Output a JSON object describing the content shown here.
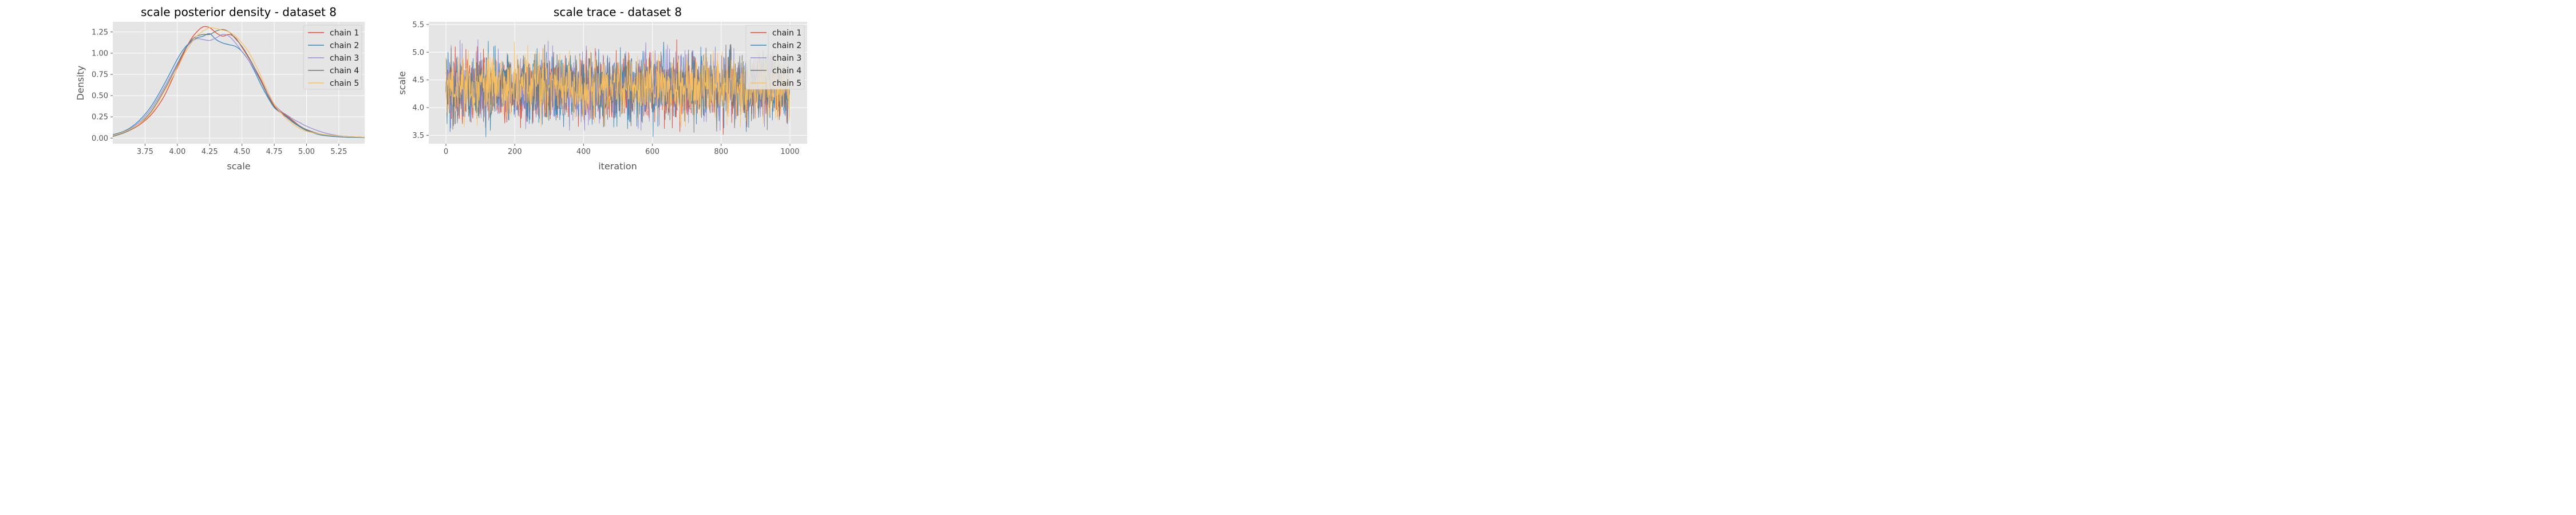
{
  "chart_data": [
    {
      "type": "line",
      "title": "scale posterior density - dataset 8",
      "xlabel": "scale",
      "ylabel": "Density",
      "xlim": [
        3.5,
        5.45
      ],
      "ylim": [
        -0.065,
        1.37
      ],
      "xticks": [
        "3.75",
        "4.00",
        "4.25",
        "4.50",
        "4.75",
        "5.00",
        "5.25"
      ],
      "yticks": [
        "0.00",
        "0.25",
        "0.50",
        "0.75",
        "1.00",
        "1.25"
      ],
      "grid": true,
      "legend_position": "top-right",
      "series": [
        {
          "name": "chain 1",
          "color": "#E24A33",
          "x": [
            3.5,
            3.6,
            3.7,
            3.8,
            3.9,
            4.0,
            4.05,
            4.1,
            4.15,
            4.2,
            4.25,
            4.3,
            4.35,
            4.4,
            4.45,
            4.5,
            4.55,
            4.6,
            4.65,
            4.7,
            4.75,
            4.8,
            4.85,
            4.9,
            4.95,
            5.0,
            5.1,
            5.2,
            5.3,
            5.45
          ],
          "y": [
            0.02,
            0.07,
            0.15,
            0.28,
            0.5,
            0.83,
            1.0,
            1.15,
            1.25,
            1.31,
            1.3,
            1.24,
            1.2,
            1.22,
            1.18,
            1.07,
            0.95,
            0.82,
            0.68,
            0.52,
            0.38,
            0.31,
            0.26,
            0.2,
            0.14,
            0.1,
            0.05,
            0.03,
            0.02,
            0.01
          ]
        },
        {
          "name": "chain 2",
          "color": "#348ABD",
          "x": [
            3.5,
            3.6,
            3.7,
            3.8,
            3.9,
            4.0,
            4.05,
            4.1,
            4.15,
            4.2,
            4.25,
            4.3,
            4.35,
            4.4,
            4.45,
            4.5,
            4.55,
            4.6,
            4.65,
            4.7,
            4.75,
            4.8,
            4.85,
            4.9,
            4.95,
            5.0,
            5.1,
            5.2,
            5.3,
            5.45
          ],
          "y": [
            0.04,
            0.09,
            0.2,
            0.38,
            0.64,
            0.93,
            1.05,
            1.13,
            1.18,
            1.2,
            1.23,
            1.16,
            1.12,
            1.1,
            1.08,
            1.02,
            0.92,
            0.78,
            0.62,
            0.48,
            0.36,
            0.3,
            0.24,
            0.18,
            0.13,
            0.09,
            0.04,
            0.02,
            0.01,
            0.005
          ]
        },
        {
          "name": "chain 3",
          "color": "#988ED5",
          "x": [
            3.5,
            3.6,
            3.7,
            3.8,
            3.9,
            4.0,
            4.05,
            4.1,
            4.15,
            4.2,
            4.25,
            4.3,
            4.35,
            4.4,
            4.45,
            4.5,
            4.55,
            4.6,
            4.65,
            4.7,
            4.75,
            4.8,
            4.85,
            4.9,
            4.95,
            5.0,
            5.1,
            5.2,
            5.3,
            5.45
          ],
          "y": [
            0.02,
            0.08,
            0.18,
            0.35,
            0.6,
            0.88,
            1.02,
            1.12,
            1.17,
            1.16,
            1.15,
            1.18,
            1.22,
            1.2,
            1.12,
            1.02,
            0.92,
            0.8,
            0.66,
            0.52,
            0.4,
            0.32,
            0.27,
            0.22,
            0.18,
            0.14,
            0.08,
            0.04,
            0.02,
            0.01
          ]
        },
        {
          "name": "chain 4",
          "color": "#777777",
          "x": [
            3.5,
            3.6,
            3.7,
            3.8,
            3.9,
            4.0,
            4.05,
            4.1,
            4.15,
            4.2,
            4.25,
            4.3,
            4.35,
            4.4,
            4.45,
            4.5,
            4.55,
            4.6,
            4.65,
            4.7,
            4.75,
            4.8,
            4.85,
            4.9,
            4.95,
            5.0,
            5.1,
            5.2,
            5.3,
            5.45
          ],
          "y": [
            0.02,
            0.07,
            0.16,
            0.32,
            0.57,
            0.86,
            1.02,
            1.14,
            1.2,
            1.22,
            1.22,
            1.26,
            1.28,
            1.25,
            1.17,
            1.08,
            0.96,
            0.82,
            0.66,
            0.5,
            0.37,
            0.3,
            0.25,
            0.19,
            0.14,
            0.1,
            0.05,
            0.03,
            0.02,
            0.01
          ]
        },
        {
          "name": "chain 5",
          "color": "#FBC15E",
          "x": [
            3.5,
            3.6,
            3.7,
            3.8,
            3.9,
            4.0,
            4.05,
            4.1,
            4.15,
            4.2,
            4.25,
            4.3,
            4.35,
            4.4,
            4.45,
            4.5,
            4.55,
            4.6,
            4.65,
            4.7,
            4.75,
            4.8,
            4.85,
            4.9,
            4.95,
            5.0,
            5.1,
            5.2,
            5.3,
            5.45
          ],
          "y": [
            0.03,
            0.08,
            0.16,
            0.3,
            0.55,
            0.82,
            0.98,
            1.1,
            1.2,
            1.26,
            1.3,
            1.29,
            1.27,
            1.25,
            1.2,
            1.12,
            1.02,
            0.88,
            0.72,
            0.55,
            0.4,
            0.3,
            0.22,
            0.16,
            0.11,
            0.08,
            0.05,
            0.03,
            0.02,
            0.01
          ]
        }
      ]
    },
    {
      "type": "line",
      "title": "scale trace - dataset 8",
      "xlabel": "iteration",
      "ylabel": "scale",
      "xlim": [
        -50,
        1050
      ],
      "ylim": [
        3.35,
        5.55
      ],
      "xticks": [
        "0",
        "200",
        "400",
        "600",
        "800",
        "1000"
      ],
      "yticks": [
        "3.5",
        "4.0",
        "4.5",
        "5.0",
        "5.5"
      ],
      "grid": true,
      "legend_position": "top-right",
      "n_iterations": 1000,
      "series": [
        {
          "name": "chain 1",
          "color": "#E24A33",
          "mean": 4.35,
          "sd": 0.3,
          "min": 3.42,
          "max": 5.38
        },
        {
          "name": "chain 2",
          "color": "#348ABD",
          "mean": 4.35,
          "sd": 0.3,
          "min": 3.47,
          "max": 5.35
        },
        {
          "name": "chain 3",
          "color": "#988ED5",
          "mean": 4.37,
          "sd": 0.3,
          "min": 3.46,
          "max": 5.46
        },
        {
          "name": "chain 4",
          "color": "#777777",
          "mean": 4.37,
          "sd": 0.29,
          "min": 3.55,
          "max": 5.27
        },
        {
          "name": "chain 5",
          "color": "#FBC15E",
          "mean": 4.37,
          "sd": 0.28,
          "min": 3.65,
          "max": 5.35
        }
      ]
    }
  ]
}
